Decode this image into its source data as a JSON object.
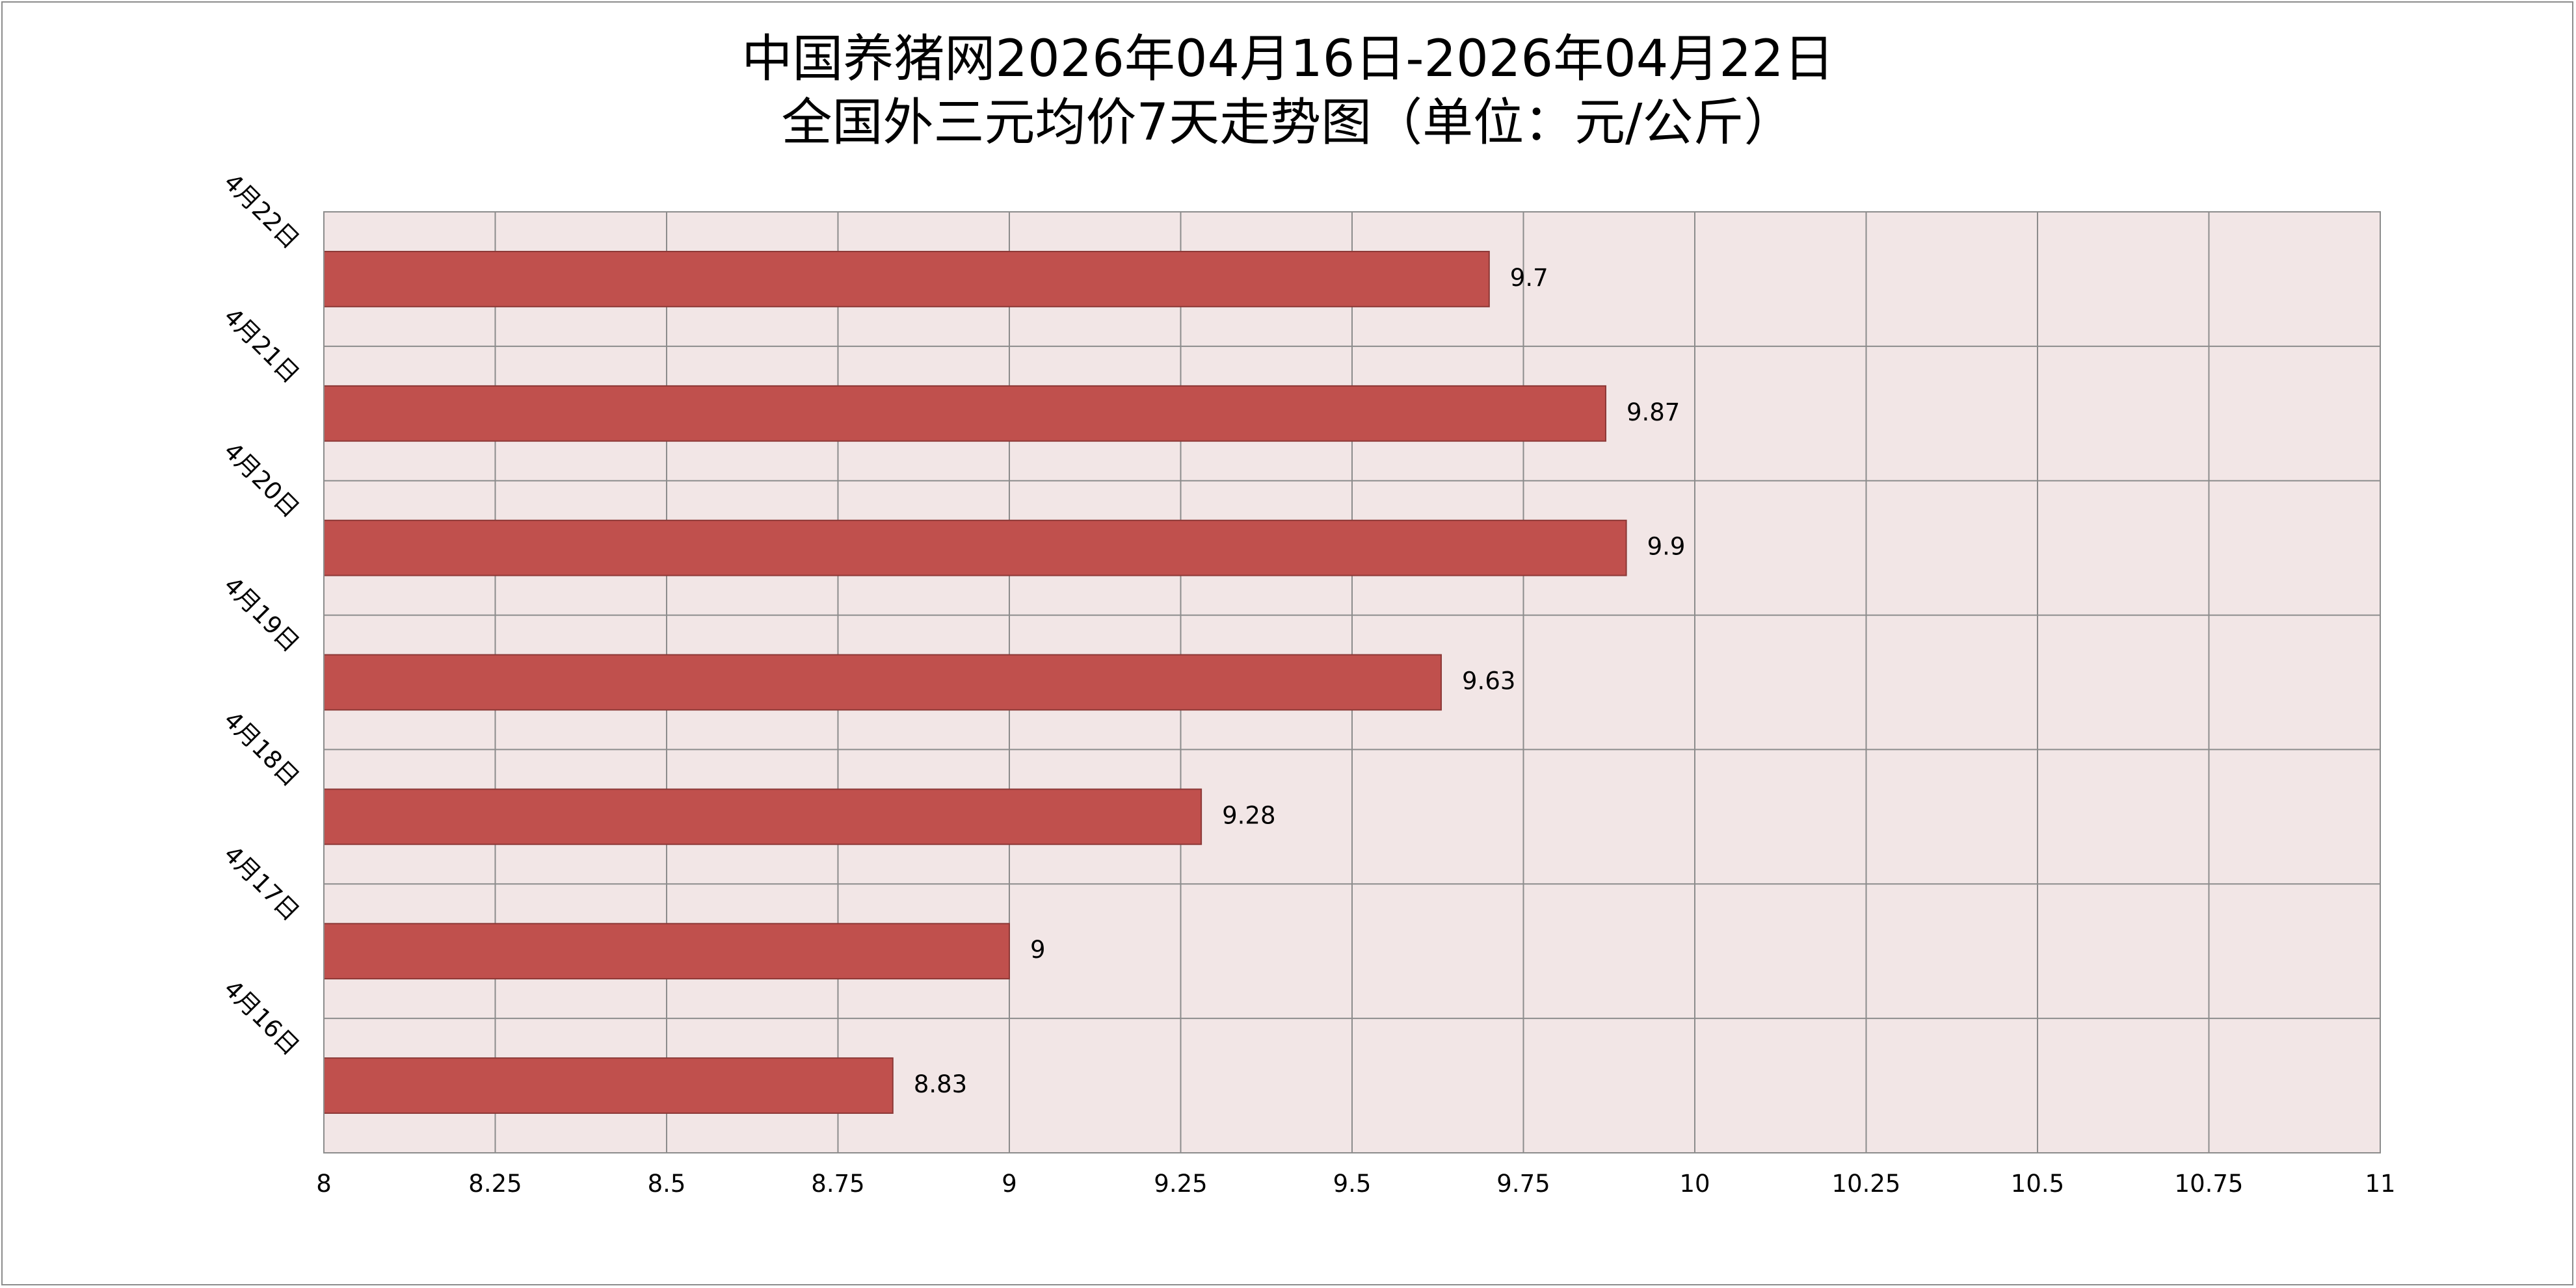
{
  "chart_data": {
    "type": "bar",
    "orientation": "horizontal",
    "title_line1": "中国养猪网2026年04月16日-2026年04月22日",
    "title_line2": "全国外三元均价7天走势图（单位：元/公斤）",
    "categories": [
      "4月22日",
      "4月21日",
      "4月20日",
      "4月19日",
      "4月18日",
      "4月17日",
      "4月16日"
    ],
    "values": [
      9.7,
      9.87,
      9.9,
      9.63,
      9.28,
      9,
      8.83
    ],
    "data_labels": [
      "9.7",
      "9.87",
      "9.9",
      "9.63",
      "9.28",
      "9",
      "8.83"
    ],
    "xlim": [
      8,
      11
    ],
    "x_ticks": [
      "8",
      "8.25",
      "8.5",
      "8.75",
      "9",
      "9.25",
      "9.5",
      "9.75",
      "10",
      "10.25",
      "10.5",
      "10.75",
      "11"
    ],
    "grid": true,
    "legend": "none",
    "colors": {
      "bar_fill": "#c0504d",
      "bar_stroke": "#8c3836",
      "plot_background": "#f2e6e6",
      "grid": "#8c8c8c"
    }
  }
}
